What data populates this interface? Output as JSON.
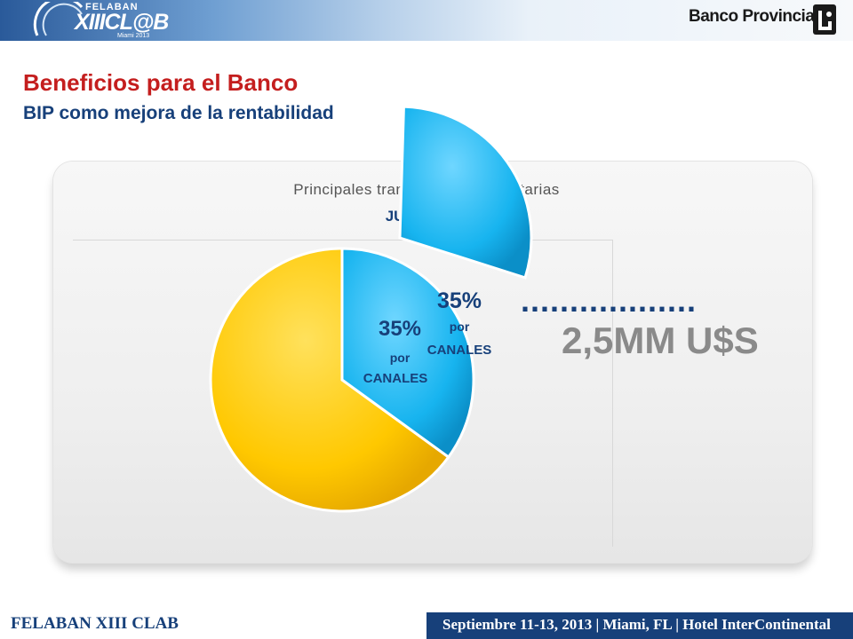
{
  "header": {
    "logo_left": {
      "line1": "FELABAN",
      "line2": "XIIICL@B",
      "line3": "Miami 2013"
    },
    "logo_right": "Banco Provincia"
  },
  "title": "Beneficios para el Banco",
  "subtitle": "BIP como mejora de la rentabilidad",
  "chart_data": {
    "type": "pie",
    "title": "Principales transacciones monetarias",
    "subtitle": "JULIO 2013",
    "slices": [
      {
        "label": "35% por CANALES",
        "value": 35,
        "color": "#00a8e6",
        "exploded": true
      },
      {
        "value": 65,
        "color": "#ffc800",
        "exploded": false
      }
    ],
    "annotation": "2,5MM U$S",
    "callout_dots": "..................",
    "hidden_label": {
      "pct": "35%",
      "line1": "por",
      "line2": "CANALES"
    },
    "front_label": {
      "pct": "35%",
      "line1": "por",
      "line2": "CANALES"
    }
  },
  "footer": {
    "left": "FELABAN XIII CLAB",
    "right": "Septiembre 11-13, 2013  |  Miami, FL  |  Hotel InterContinental"
  },
  "colors": {
    "title": "#c41e1e",
    "navy": "#17407a",
    "blue": "#00a8e6",
    "yellow": "#ffc800"
  }
}
